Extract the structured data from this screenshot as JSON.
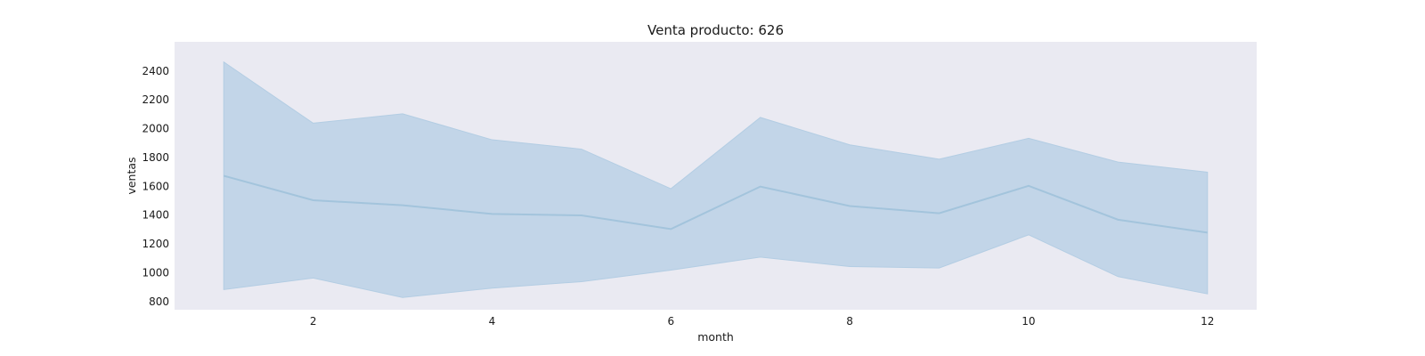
{
  "chart_data": {
    "type": "area",
    "title": "Venta producto: 626",
    "xlabel": "month",
    "ylabel": "ventas",
    "x": [
      1,
      2,
      3,
      4,
      5,
      6,
      7,
      8,
      9,
      10,
      11,
      12
    ],
    "series": [
      {
        "role": "mean",
        "values": [
          1670,
          1500,
          1465,
          1405,
          1395,
          1300,
          1595,
          1460,
          1410,
          1600,
          1365,
          1275
        ]
      },
      {
        "role": "upper",
        "values": [
          2460,
          2035,
          2100,
          1920,
          1855,
          1580,
          2075,
          1885,
          1785,
          1930,
          1765,
          1695
        ]
      },
      {
        "role": "lower",
        "values": [
          880,
          960,
          825,
          890,
          935,
          1015,
          1105,
          1040,
          1030,
          1260,
          970,
          850
        ]
      }
    ],
    "xticks": [
      2,
      4,
      6,
      8,
      10,
      12
    ],
    "yticks": [
      800,
      1000,
      1200,
      1400,
      1600,
      1800,
      2000,
      2200,
      2400
    ],
    "xlim": [
      0.45,
      12.55
    ],
    "ylim": [
      740,
      2600
    ],
    "grid": false,
    "colors": {
      "band": "#b3cde3",
      "line": "#a3c4dc",
      "background": "#eaeaf2"
    }
  }
}
